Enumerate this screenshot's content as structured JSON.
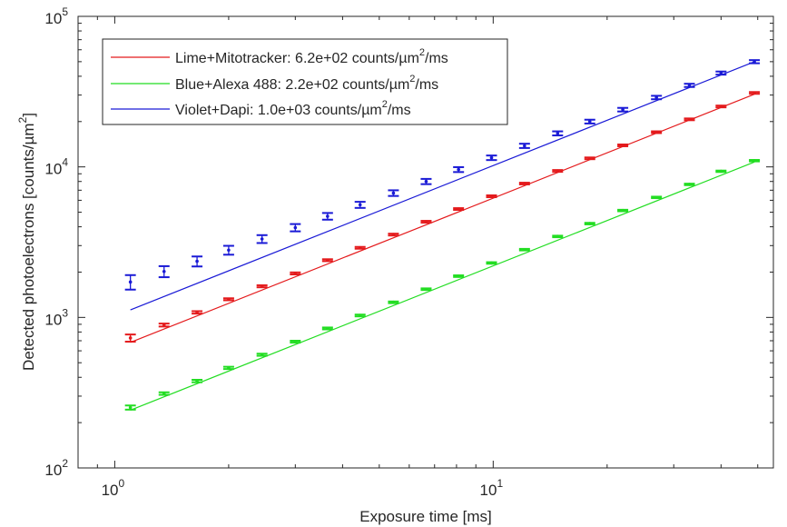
{
  "chart_data": {
    "type": "scatter",
    "title": "",
    "xlabel": "Exposure time [ms]",
    "ylabel": "Detected photoelectrons [counts/µm",
    "ylabel_sup": "2",
    "ylabel_close": "]",
    "xscale": "log",
    "yscale": "log",
    "xlim": [
      0.8,
      55
    ],
    "ylim": [
      100,
      100000
    ],
    "grid": false,
    "legend_position": "top-left",
    "x_ticks": [
      {
        "value": 1,
        "base": "10",
        "exp": "0"
      },
      {
        "value": 10,
        "base": "10",
        "exp": "1"
      }
    ],
    "y_ticks": [
      {
        "value": 100,
        "base": "10",
        "exp": "2"
      },
      {
        "value": 1000,
        "base": "10",
        "exp": "3"
      },
      {
        "value": 10000,
        "base": "10",
        "exp": "4"
      },
      {
        "value": 100000,
        "base": "10",
        "exp": "5"
      }
    ],
    "x": [
      1.1,
      1.35,
      1.65,
      2.0,
      2.45,
      3.0,
      3.65,
      4.45,
      5.45,
      6.65,
      8.1,
      9.9,
      12.1,
      14.8,
      18.0,
      22.0,
      27.0,
      33.0,
      40.0,
      49.0
    ],
    "series": [
      {
        "name": "Lime+Mitotracker: 6.2e+02 counts/µm",
        "legend_sup": "2",
        "legend_suffix": "/ms",
        "color": "#e41a1c",
        "fit_rate": 620,
        "values": [
          730,
          890,
          1080,
          1320,
          1610,
          1960,
          2400,
          2900,
          3550,
          4320,
          5250,
          6380,
          7750,
          9400,
          11400,
          13900,
          17000,
          20700,
          25200,
          31000
        ],
        "errors": [
          40,
          20,
          20,
          20,
          25,
          30,
          35,
          40,
          50,
          60,
          70,
          90,
          100,
          130,
          150,
          190,
          230,
          280,
          340,
          420
        ]
      },
      {
        "name": "Blue+Alexa 488: 2.2e+02 counts/µm",
        "legend_sup": "2",
        "legend_suffix": "/ms",
        "color": "#22dd22",
        "fit_rate": 220,
        "values": [
          252,
          312,
          378,
          462,
          565,
          690,
          845,
          1030,
          1260,
          1540,
          1880,
          2300,
          2820,
          3450,
          4200,
          5130,
          6270,
          7650,
          9350,
          11000
        ],
        "errors": [
          8,
          6,
          7,
          8,
          9,
          10,
          12,
          14,
          16,
          19,
          23,
          27,
          33,
          40,
          48,
          58,
          70,
          85,
          100,
          120
        ]
      },
      {
        "name": "Violet+Dapi: 1.0e+03 counts/µm",
        "legend_sup": "2",
        "legend_suffix": "/ms",
        "color": "#1a1ad6",
        "fit_rate": 1020,
        "values": [
          1720,
          2020,
          2360,
          2800,
          3320,
          3950,
          4700,
          5600,
          6700,
          8000,
          9600,
          11500,
          13800,
          16700,
          20000,
          24000,
          28900,
          34800,
          42000,
          50000
        ],
        "errors": [
          190,
          170,
          180,
          190,
          200,
          220,
          240,
          260,
          290,
          320,
          360,
          400,
          450,
          520,
          580,
          660,
          760,
          860,
          1000,
          1200
        ]
      }
    ]
  }
}
